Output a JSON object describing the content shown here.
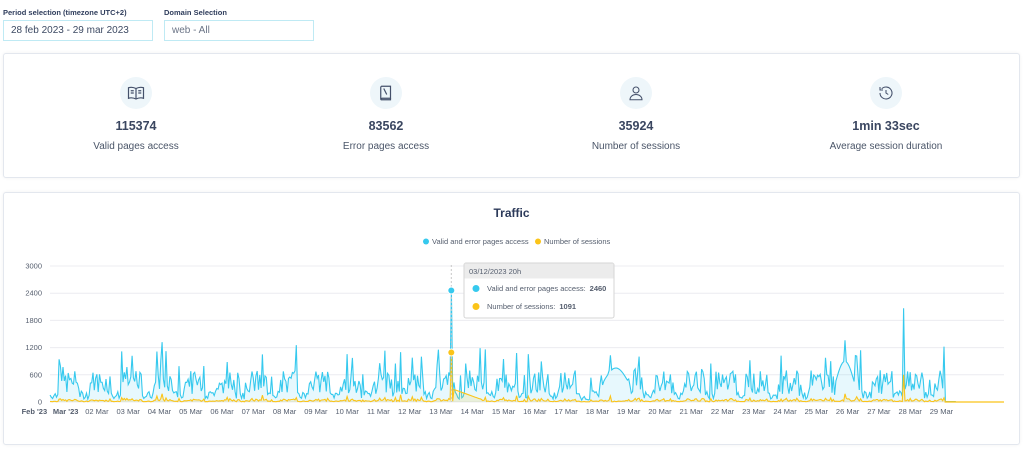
{
  "filters": {
    "period": {
      "label": "Period selection (timezone UTC+2)",
      "value": "28 feb 2023 - 29 mar 2023"
    },
    "domain": {
      "label": "Domain Selection",
      "value": "web - All"
    }
  },
  "kpis": [
    {
      "value": "115374",
      "label": "Valid pages access",
      "icon": "open-book-icon"
    },
    {
      "value": "83562",
      "label": "Error pages access",
      "icon": "closed-book-icon"
    },
    {
      "value": "35924",
      "label": "Number of sessions",
      "icon": "user-icon"
    },
    {
      "value": "1min 33sec",
      "label": "Average session duration",
      "icon": "clock-history-icon"
    }
  ],
  "colors": {
    "pages": "#36c9ee",
    "sessions": "#fbc419",
    "title": "#2c3a5a"
  },
  "chart_data": {
    "type": "line",
    "title": "Traffic",
    "legend": [
      "Valid and error pages access",
      "Number of sessions"
    ],
    "legend_position": "top",
    "ylim": [
      0,
      3000
    ],
    "y_ticks": [
      "0",
      "600",
      "1200",
      "1800",
      "2400",
      "3000"
    ],
    "x_tick_labels": [
      "Feb '23",
      "Mar '23",
      "02 Mar",
      "03 Mar",
      "04 Mar",
      "05 Mar",
      "06 Mar",
      "07 Mar",
      "08 Mar",
      "09 Mar",
      "10 Mar",
      "11 Mar",
      "12 Mar",
      "13 Mar",
      "14 Mar",
      "15 Mar",
      "16 Mar",
      "17 Mar",
      "18 Mar",
      "19 Mar",
      "20 Mar",
      "21 Mar",
      "22 Mar",
      "23 Mar",
      "24 Mar",
      "25 Mar",
      "26 Mar",
      "27 Mar",
      "28 Mar",
      "29 Mar"
    ],
    "x_range_days": [
      0,
      30.5
    ],
    "grid": true,
    "series": [
      {
        "name": "Valid and error pages access",
        "area": true,
        "values_hourly": []
      },
      {
        "name": "Number of sessions",
        "area": true,
        "values_hourly": []
      }
    ],
    "highlight": {
      "time": "03/12/2023 20h",
      "day_offset": 12.83,
      "rows": [
        {
          "label": "Valid and error pages access:",
          "value": "2460"
        },
        {
          "label": "Number of sessions:",
          "value": "1091"
        }
      ]
    },
    "peaks": [
      {
        "day_offset": 3.6,
        "pages": 1320,
        "sessions": 180
      },
      {
        "day_offset": 6.8,
        "pages": 1050,
        "sessions": 150
      },
      {
        "day_offset": 11.2,
        "pages": 1100,
        "sessions": 160
      },
      {
        "day_offset": 12.83,
        "pages": 2460,
        "sessions": 1091
      },
      {
        "day_offset": 14.9,
        "pages": 1080,
        "sessions": 140
      },
      {
        "day_offset": 17.9,
        "pages": 1030,
        "sessions": 130
      },
      {
        "day_offset": 25.4,
        "pages": 1360,
        "sessions": 180
      },
      {
        "day_offset": 27.3,
        "pages": 2070,
        "sessions": 600
      }
    ]
  }
}
